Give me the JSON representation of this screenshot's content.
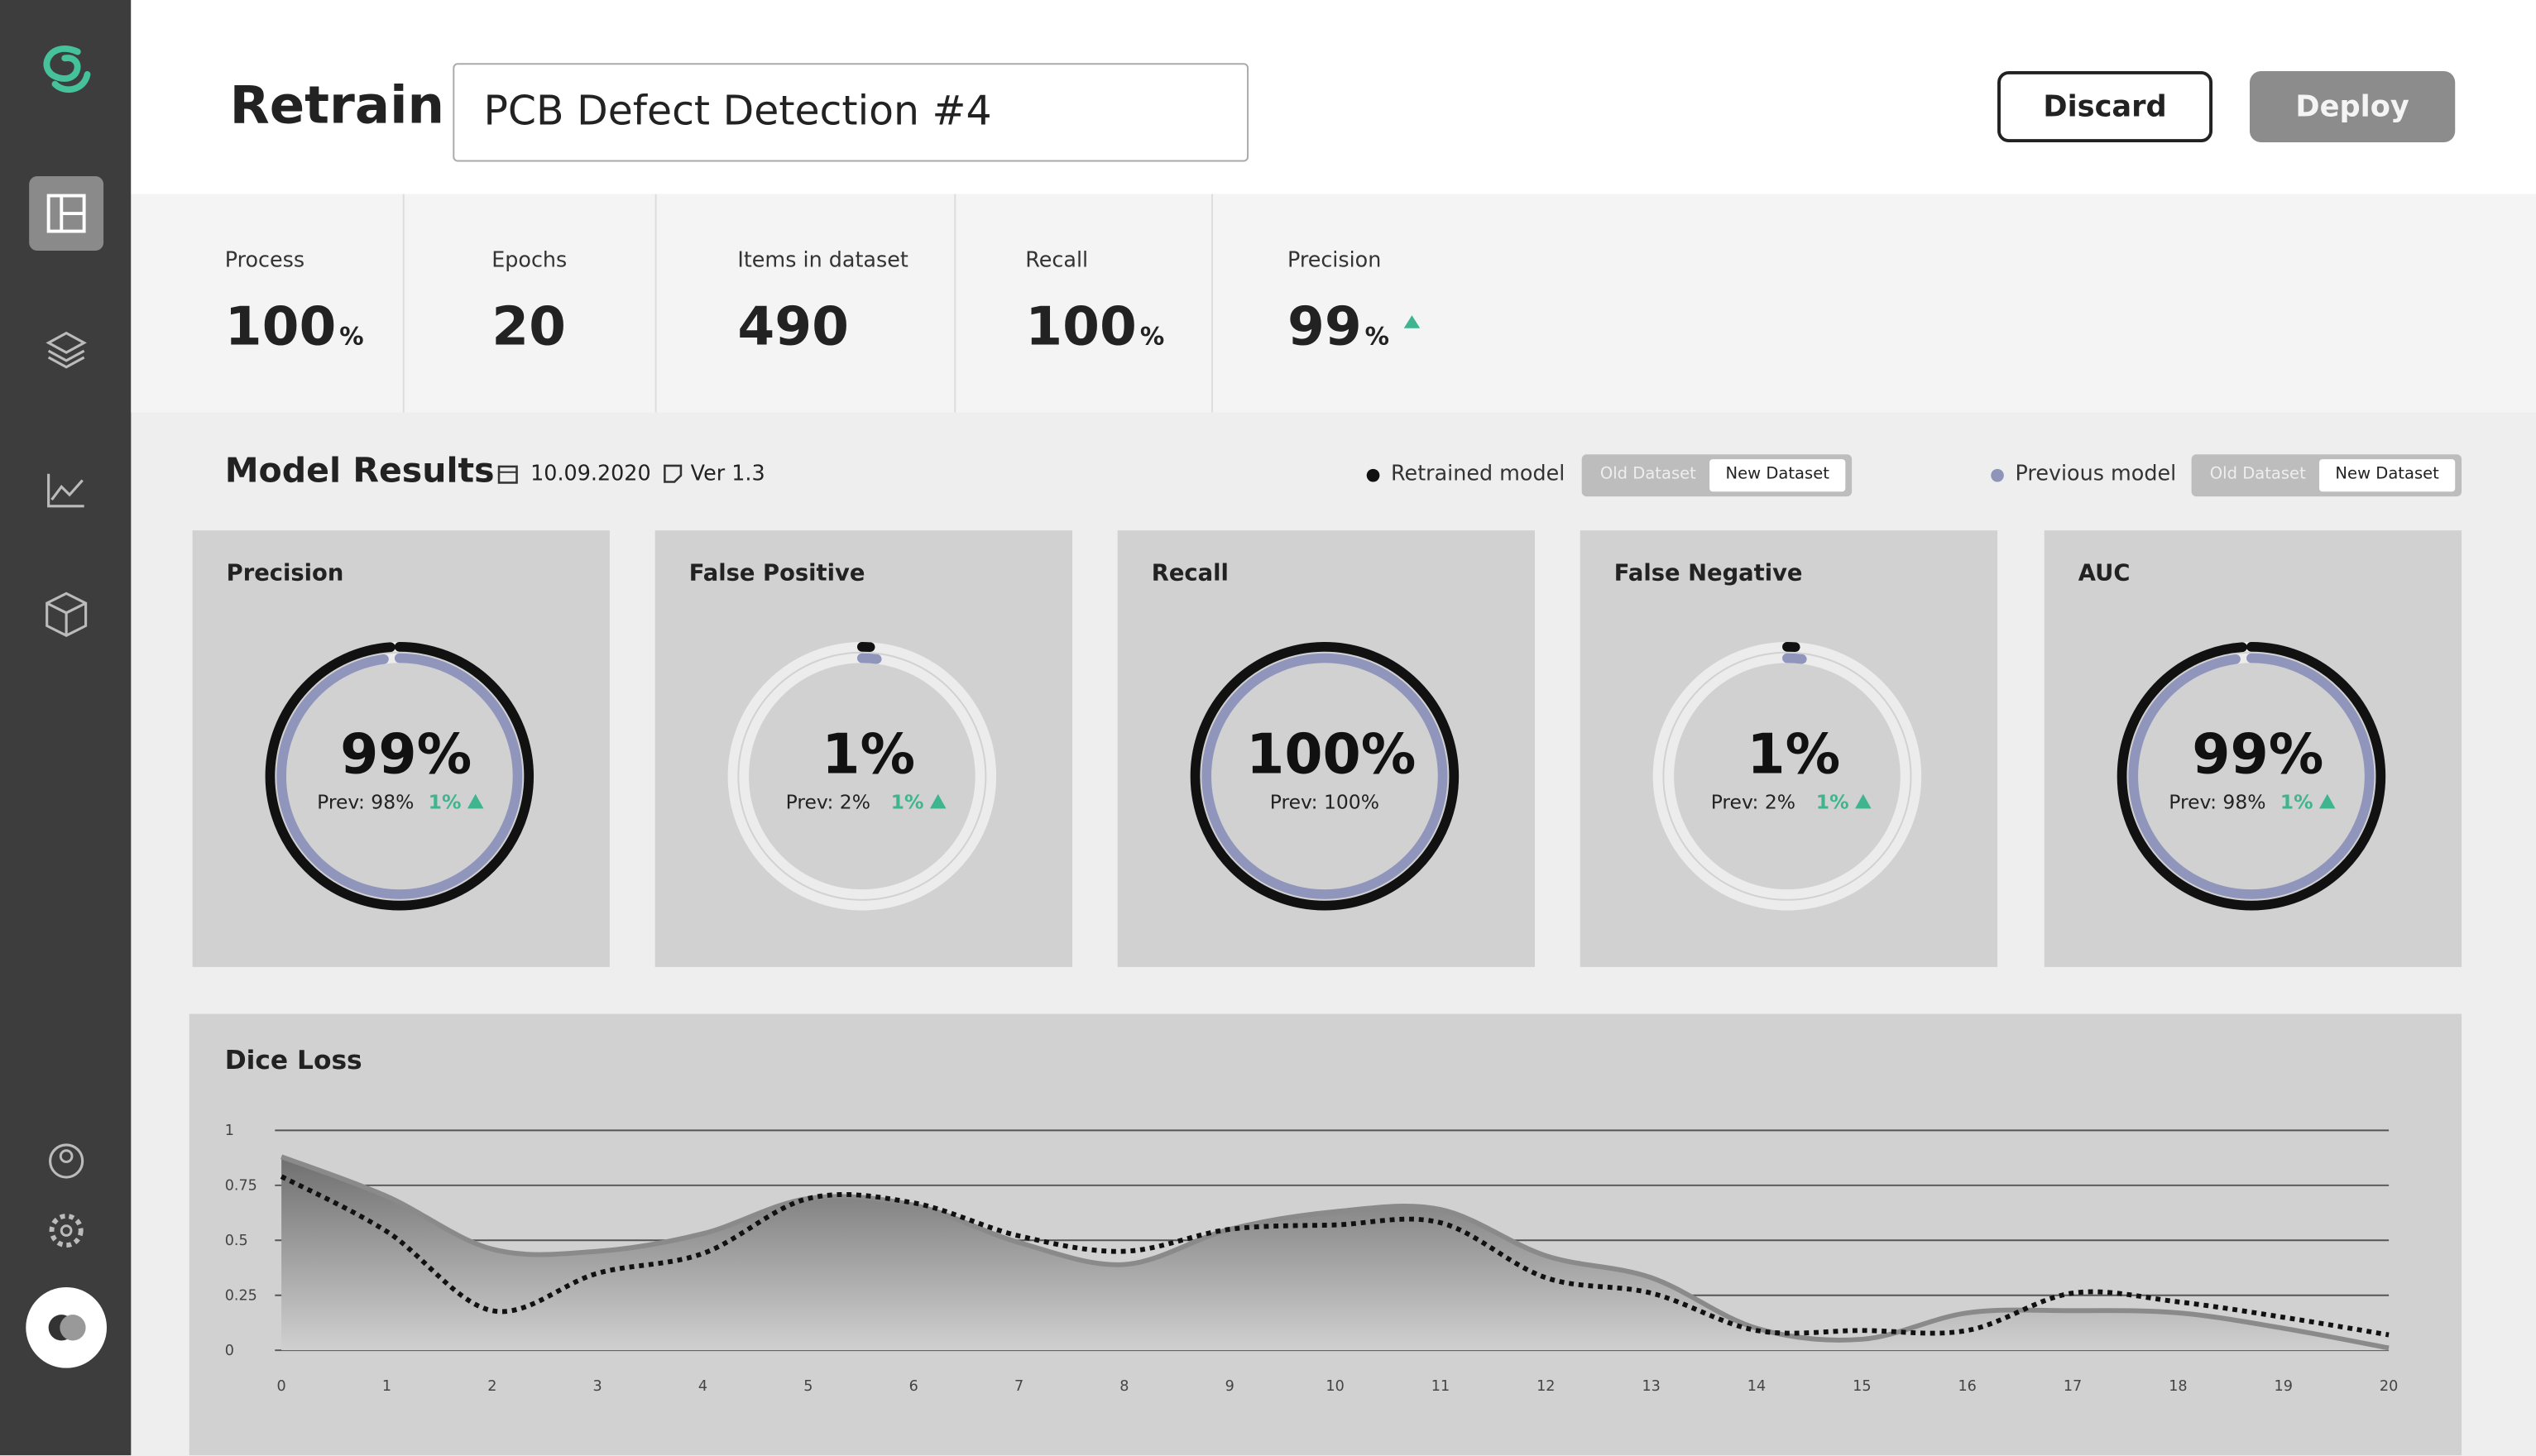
{
  "header": {
    "title": "Retrain",
    "model_name": "PCB Defect Detection #4",
    "discard": "Discard",
    "deploy": "Deploy"
  },
  "stats": [
    {
      "label": "Process",
      "value": 100,
      "unit": "%"
    },
    {
      "label": "Epochs",
      "value": 20
    },
    {
      "label": "Items in dataset",
      "value": 490
    },
    {
      "label": "Recall",
      "value": 100,
      "unit": "%"
    },
    {
      "label": "Precision",
      "value": 99,
      "unit": "%"
    }
  ],
  "results": {
    "title": "Model Results",
    "date": "10.09.2020",
    "version": "Ver 1.3",
    "toggles": [
      {
        "old": "Old Dataset",
        "new": "New Dataset"
      },
      {
        "old": "Old Dataset",
        "new": "New Dataset"
      }
    ]
  },
  "cards": [
    {
      "title": "Precision",
      "value": 99,
      "value_label": "99%",
      "prev": 98,
      "prev_label": "Prev: 98%",
      "delta_label": "1%"
    },
    {
      "title": "False Positive",
      "value": 1,
      "value_label": "1%",
      "prev": 2,
      "prev_label": "Prev: 2%",
      "delta_label": "1%"
    },
    {
      "title": "Recall",
      "value": 100,
      "value_label": "100%",
      "prev": 100,
      "prev_label": "Prev: 100%"
    },
    {
      "title": "False Negative",
      "value": 1,
      "value_label": "1%",
      "prev": 2,
      "prev_label": "Prev: 2%",
      "delta_label": "1%"
    },
    {
      "title": "AUC",
      "value": 99,
      "value_label": "99%",
      "prev": 98,
      "prev_label": "Prev: 98%",
      "delta_label": "1%"
    }
  ],
  "chart_data": {
    "type": "line",
    "title": "Dice Loss",
    "x": [
      0,
      1,
      2,
      3,
      4,
      5,
      6,
      7,
      8,
      9,
      10,
      11,
      12,
      13,
      14,
      15,
      16,
      17,
      18,
      19,
      20
    ],
    "xlim": [
      0,
      20
    ],
    "xticks": [
      0,
      1,
      2,
      3,
      4,
      5,
      6,
      7,
      8,
      9,
      10,
      11,
      12,
      13,
      14,
      15,
      16,
      17,
      18,
      19,
      20
    ],
    "ylim": [
      0,
      1
    ],
    "yticks": [
      0,
      0.25,
      0.5,
      0.75,
      1
    ],
    "grid": true,
    "series": [
      {
        "name": "Retrained model",
        "color": "#111111",
        "style": "dashed",
        "values": [
          0.79,
          0.54,
          0.18,
          0.35,
          0.44,
          0.69,
          0.67,
          0.52,
          0.45,
          0.55,
          0.57,
          0.58,
          0.33,
          0.26,
          0.09,
          0.09,
          0.09,
          0.26,
          0.22,
          0.15,
          0.07
        ]
      },
      {
        "name": "Previous model",
        "color": "#8a8a8a",
        "style": "area",
        "values": [
          0.88,
          0.7,
          0.46,
          0.45,
          0.53,
          0.69,
          0.66,
          0.49,
          0.39,
          0.55,
          0.63,
          0.64,
          0.43,
          0.33,
          0.1,
          0.05,
          0.17,
          0.18,
          0.17,
          0.1,
          0.01
        ]
      }
    ]
  }
}
